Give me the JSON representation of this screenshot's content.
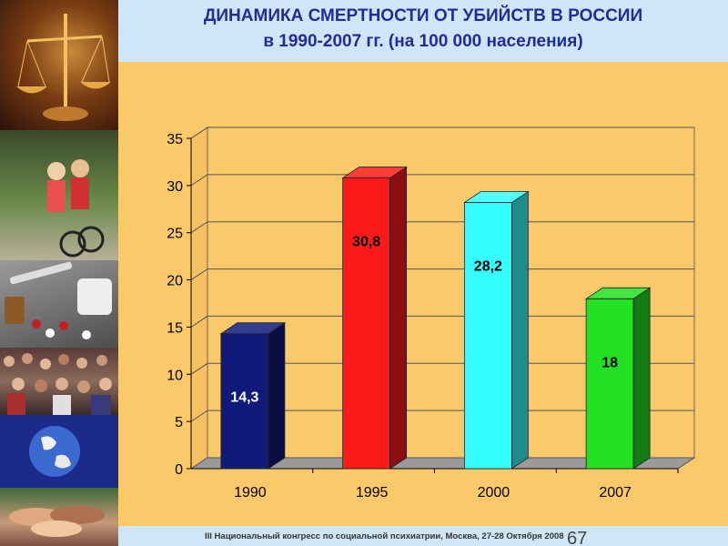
{
  "header": {
    "title_line1": "ДИНАМИКА СМЕРТНОСТИ ОТ УБИЙСТВ В РОССИИ",
    "title_line2": "в 1990-2007 гг. (на 100 000 населения)"
  },
  "footer": {
    "text": "III Национальный конгресс по социальной психиатрии, Москва, 27-28 Октября 2008",
    "page_number": "67"
  },
  "sidebar": {
    "panels": [
      "scales-of-justice-photo",
      "children-bicycle-photo",
      "pills-syringes-photo",
      "crowd-photo",
      "earth-globe-photo",
      "joined-hands-photo"
    ]
  },
  "colors": {
    "background": "#f9c96a",
    "header_bg": "#cfe6f8",
    "title": "#1f2d9a"
  },
  "chart_data": {
    "type": "bar",
    "style": "3d",
    "categories": [
      "1990",
      "1995",
      "2000",
      "2007"
    ],
    "values": [
      14.3,
      30.8,
      28.2,
      18
    ],
    "value_labels": [
      "14,3",
      "30,8",
      "28,2",
      "18"
    ],
    "bar_colors": [
      "#101a7a",
      "#ff1a1a",
      "#33ffff",
      "#22e022"
    ],
    "label_colors": [
      "#ffffff",
      "#000000",
      "#000000",
      "#000000"
    ],
    "ylim": [
      0,
      35
    ],
    "yticks": [
      0,
      5,
      10,
      15,
      20,
      25,
      30,
      35
    ],
    "grid": true,
    "legend": false
  }
}
